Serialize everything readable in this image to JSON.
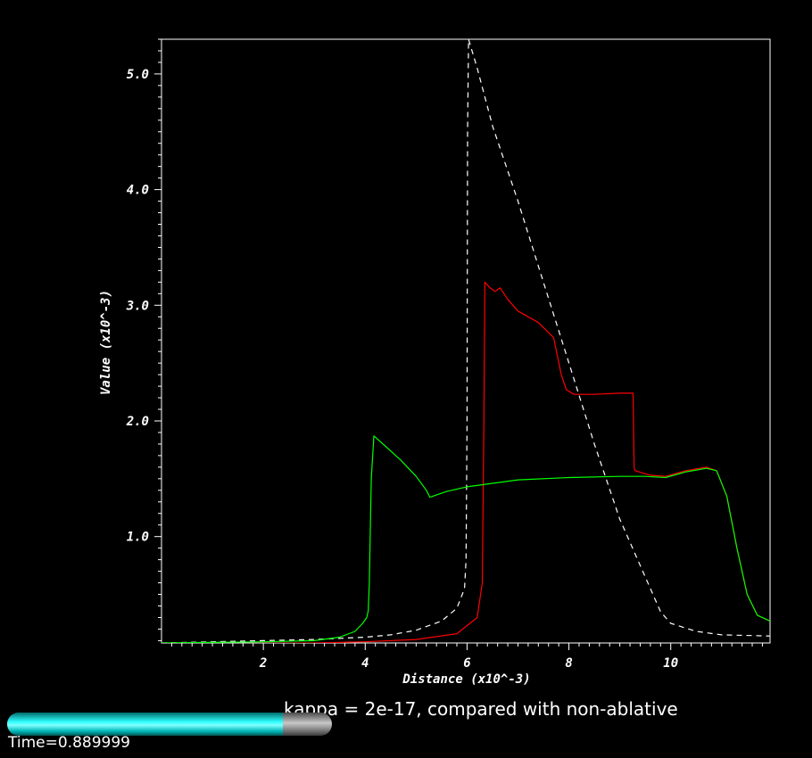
{
  "chart_data": {
    "type": "line",
    "xlabel": "Distance (x10^-3)",
    "ylabel": "Value (x10^-3)",
    "xlim": [
      0.0,
      11.95
    ],
    "ylim": [
      0.08,
      5.3
    ],
    "x_ticks": [
      2,
      4,
      6,
      8,
      10
    ],
    "x_tick_labels": [
      "2",
      "4",
      "6",
      "8",
      "10"
    ],
    "y_ticks": [
      1.0,
      2.0,
      3.0,
      4.0,
      5.0
    ],
    "y_tick_labels": [
      "1.0",
      "2.0",
      "3.0",
      "4.0",
      "5.0"
    ],
    "background": "#000000",
    "axis_color": "#ffffff",
    "grid": false,
    "series": [
      {
        "color": "#ffffff",
        "dash": "6,5",
        "points": [
          [
            0.0,
            0.08
          ],
          [
            2.0,
            0.1
          ],
          [
            3.0,
            0.11
          ],
          [
            4.0,
            0.13
          ],
          [
            4.5,
            0.15
          ],
          [
            5.0,
            0.19
          ],
          [
            5.5,
            0.27
          ],
          [
            5.8,
            0.38
          ],
          [
            5.95,
            0.55
          ],
          [
            5.98,
            0.8
          ],
          [
            6.0,
            2.0
          ],
          [
            6.01,
            4.5
          ],
          [
            6.03,
            5.3
          ],
          [
            6.2,
            5.05
          ],
          [
            6.5,
            4.55
          ],
          [
            7.0,
            3.9
          ],
          [
            7.5,
            3.2
          ],
          [
            8.0,
            2.5
          ],
          [
            8.5,
            1.8
          ],
          [
            9.0,
            1.15
          ],
          [
            9.5,
            0.65
          ],
          [
            9.8,
            0.35
          ],
          [
            10.0,
            0.25
          ],
          [
            10.5,
            0.18
          ],
          [
            11.0,
            0.15
          ],
          [
            11.95,
            0.14
          ]
        ]
      },
      {
        "color": "#ff0000",
        "dash": "",
        "points": [
          [
            0.0,
            0.07
          ],
          [
            3.0,
            0.08
          ],
          [
            4.0,
            0.09
          ],
          [
            5.0,
            0.11
          ],
          [
            5.8,
            0.16
          ],
          [
            6.2,
            0.3
          ],
          [
            6.3,
            0.6
          ],
          [
            6.33,
            2.0
          ],
          [
            6.35,
            3.2
          ],
          [
            6.45,
            3.15
          ],
          [
            6.55,
            3.12
          ],
          [
            6.65,
            3.15
          ],
          [
            6.8,
            3.05
          ],
          [
            7.0,
            2.95
          ],
          [
            7.4,
            2.85
          ],
          [
            7.7,
            2.72
          ],
          [
            7.85,
            2.4
          ],
          [
            7.95,
            2.27
          ],
          [
            8.1,
            2.23
          ],
          [
            8.5,
            2.23
          ],
          [
            9.0,
            2.24
          ],
          [
            9.26,
            2.24
          ],
          [
            9.28,
            1.6
          ],
          [
            9.3,
            1.57
          ],
          [
            9.6,
            1.53
          ],
          [
            9.9,
            1.52
          ],
          [
            10.3,
            1.57
          ],
          [
            10.7,
            1.6
          ],
          [
            10.9,
            1.57
          ],
          [
            11.1,
            1.35
          ],
          [
            11.3,
            0.9
          ],
          [
            11.5,
            0.5
          ],
          [
            11.7,
            0.32
          ],
          [
            11.95,
            0.27
          ]
        ]
      },
      {
        "color": "#00ff00",
        "dash": "",
        "points": [
          [
            0.0,
            0.08
          ],
          [
            2.0,
            0.09
          ],
          [
            3.0,
            0.1
          ],
          [
            3.5,
            0.13
          ],
          [
            3.8,
            0.18
          ],
          [
            3.95,
            0.25
          ],
          [
            4.03,
            0.3
          ],
          [
            4.06,
            0.36
          ],
          [
            4.08,
            0.6
          ],
          [
            4.12,
            1.5
          ],
          [
            4.17,
            1.87
          ],
          [
            4.4,
            1.78
          ],
          [
            4.7,
            1.66
          ],
          [
            5.0,
            1.52
          ],
          [
            5.2,
            1.4
          ],
          [
            5.27,
            1.34
          ],
          [
            5.6,
            1.39
          ],
          [
            6.0,
            1.43
          ],
          [
            7.0,
            1.49
          ],
          [
            8.0,
            1.51
          ],
          [
            9.0,
            1.52
          ],
          [
            9.5,
            1.52
          ],
          [
            9.9,
            1.51
          ],
          [
            10.3,
            1.56
          ],
          [
            10.7,
            1.59
          ],
          [
            10.9,
            1.57
          ],
          [
            11.1,
            1.35
          ],
          [
            11.3,
            0.9
          ],
          [
            11.5,
            0.5
          ],
          [
            11.7,
            0.32
          ],
          [
            11.95,
            0.27
          ]
        ]
      }
    ]
  },
  "caption": "kappa = 2e-17, compared with non-ablative",
  "time_label": "Time=0.889999",
  "progress": {
    "value": 0.85,
    "fill_color": "#00ffff",
    "track_color": "#999999"
  }
}
